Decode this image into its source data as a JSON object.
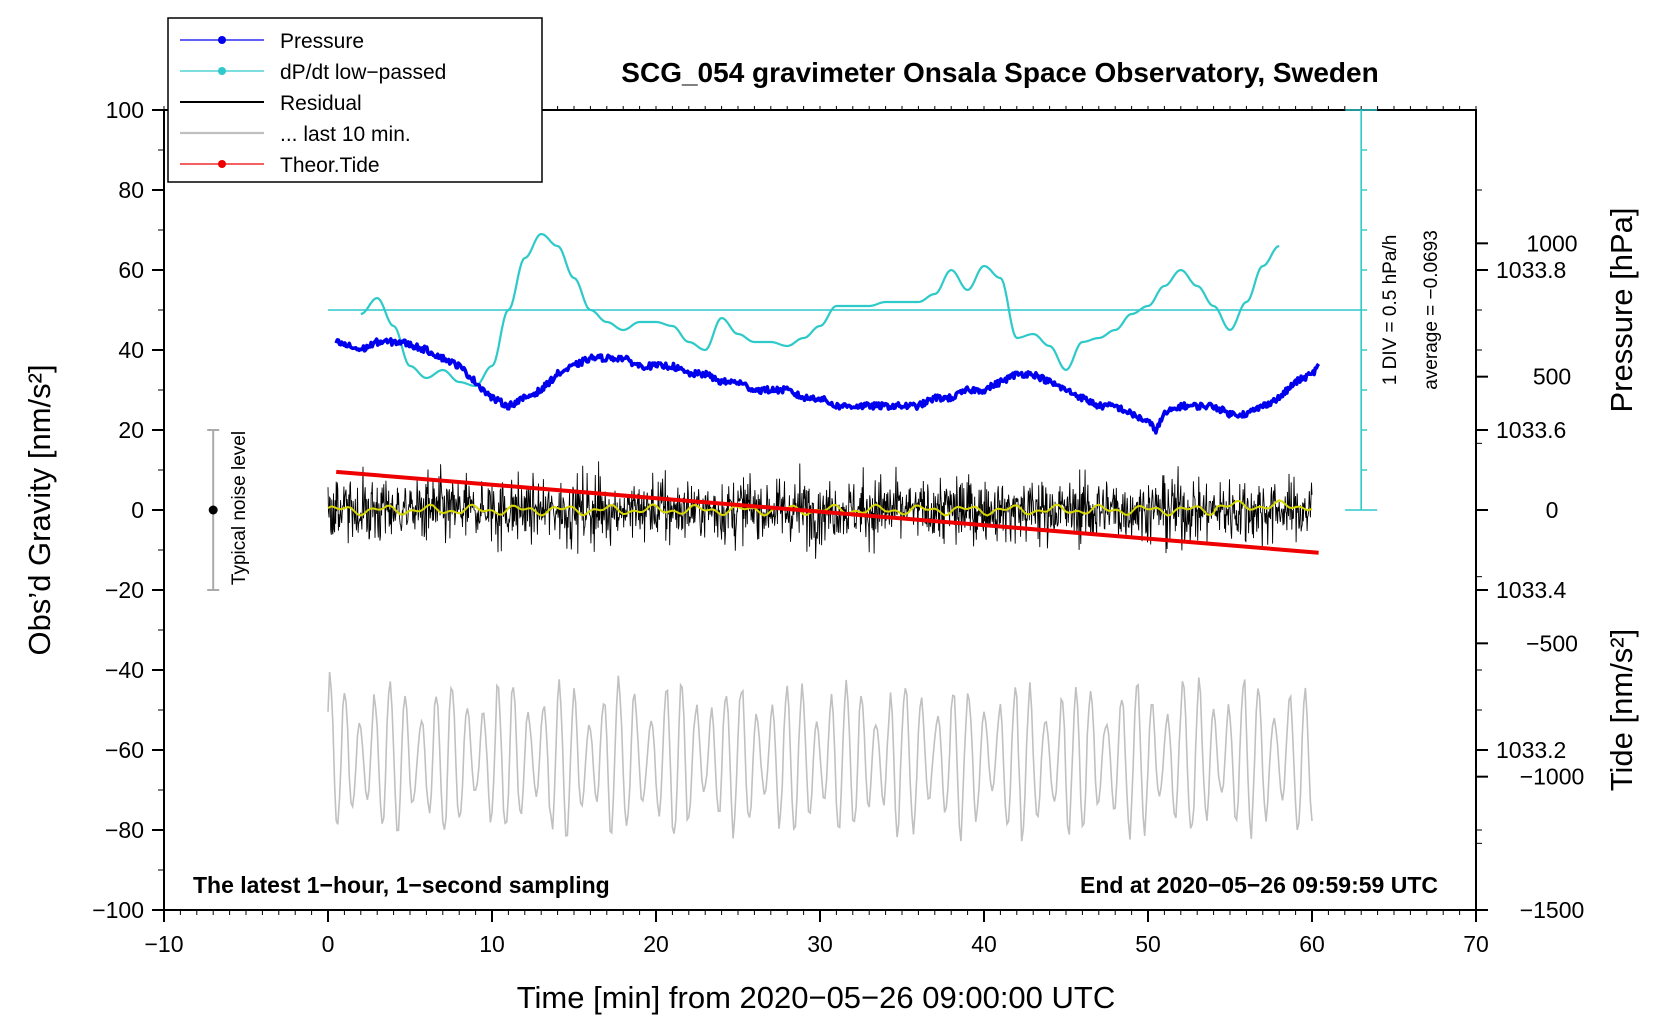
{
  "chart_data": {
    "type": "line",
    "title": "SCG_054 gravimeter Onsala Space Observatory, Sweden",
    "xlabel": "Time [min] from 2020−05−26 09:00:00 UTC",
    "ylabel_left": "Obs’d Gravity [nm/s²]",
    "ylabel_right_top": "Pressure [hPa]",
    "ylabel_right_bottom": "Tide [nm/s²]",
    "xlim": [
      -10,
      70
    ],
    "ylim": [
      -100,
      100
    ],
    "pressure_ylim": [
      1033.0,
      1034.0
    ],
    "tide_ylim": [
      -1500,
      1500
    ],
    "x_ticks": [
      {
        "value": -10,
        "label": "−10"
      },
      {
        "value": 0,
        "label": "0"
      },
      {
        "value": 10,
        "label": "10"
      },
      {
        "value": 20,
        "label": "20"
      },
      {
        "value": 30,
        "label": "30"
      },
      {
        "value": 40,
        "label": "40"
      },
      {
        "value": 50,
        "label": "50"
      },
      {
        "value": 60,
        "label": "60"
      },
      {
        "value": 70,
        "label": "70"
      }
    ],
    "y_ticks": [
      {
        "value": 100,
        "label": "100"
      },
      {
        "value": 80,
        "label": "80"
      },
      {
        "value": 60,
        "label": "60"
      },
      {
        "value": 40,
        "label": "40"
      },
      {
        "value": 20,
        "label": "20"
      },
      {
        "value": 0,
        "label": "0"
      },
      {
        "value": -20,
        "label": "−20"
      },
      {
        "value": -40,
        "label": "−40"
      },
      {
        "value": -60,
        "label": "−60"
      },
      {
        "value": -80,
        "label": "−80"
      },
      {
        "value": -100,
        "label": "−100"
      }
    ],
    "pressure_ticks": [
      {
        "value": 1033.8,
        "label": "1033.8"
      },
      {
        "value": 1033.6,
        "label": "1033.6"
      },
      {
        "value": 1033.4,
        "label": "1033.4"
      },
      {
        "value": 1033.2,
        "label": "1033.2"
      }
    ],
    "tide_ticks": [
      {
        "value": 1000,
        "label": "1000"
      },
      {
        "value": 500,
        "label": "500"
      },
      {
        "value": 0,
        "label": "0"
      },
      {
        "value": -500,
        "label": "−500"
      },
      {
        "value": -1000,
        "label": "−1000"
      },
      {
        "value": -1500,
        "label": "−1500"
      }
    ],
    "legend": [
      {
        "label": "Pressure",
        "color": "#0000ee",
        "marker": true
      },
      {
        "label": "dP/dt low−passed",
        "color": "#2ec9c9",
        "marker": true
      },
      {
        "label": "Residual",
        "color": "#000000",
        "marker": false
      },
      {
        "label": "... last 10 min.",
        "color": "#c0c0c0",
        "marker": false
      },
      {
        "label": "Theor.Tide",
        "color": "#ee0000",
        "marker": true
      }
    ],
    "series": [
      {
        "name": "Pressure",
        "color": "#0000ee",
        "axis": "pressure_hpa",
        "x": [
          0.5,
          2,
          3,
          4.5,
          6,
          7,
          8,
          9,
          10,
          11,
          12,
          13,
          14,
          15,
          16,
          17,
          18,
          19,
          20,
          21,
          22,
          23,
          24,
          25,
          26,
          27,
          28,
          29,
          30,
          31,
          32,
          33,
          34,
          35,
          36,
          37,
          38,
          39,
          40,
          41,
          42,
          43,
          44,
          45,
          46,
          47,
          48,
          49,
          50,
          50.5,
          51,
          52,
          53,
          54,
          55,
          56,
          57,
          58,
          59,
          60,
          60.4
        ],
        "y": [
          1033.71,
          1033.7,
          1033.71,
          1033.71,
          1033.7,
          1033.69,
          1033.68,
          1033.66,
          1033.64,
          1033.63,
          1033.64,
          1033.65,
          1033.67,
          1033.68,
          1033.69,
          1033.69,
          1033.69,
          1033.68,
          1033.68,
          1033.68,
          1033.67,
          1033.67,
          1033.66,
          1033.66,
          1033.65,
          1033.65,
          1033.65,
          1033.64,
          1033.64,
          1033.63,
          1033.63,
          1033.63,
          1033.63,
          1033.63,
          1033.63,
          1033.64,
          1033.64,
          1033.65,
          1033.65,
          1033.66,
          1033.67,
          1033.67,
          1033.66,
          1033.65,
          1033.64,
          1033.63,
          1033.63,
          1033.62,
          1033.61,
          1033.6,
          1033.62,
          1033.63,
          1033.63,
          1033.63,
          1033.62,
          1033.62,
          1033.63,
          1033.64,
          1033.66,
          1033.67,
          1033.68
        ]
      },
      {
        "name": "dP/dt low−passed",
        "color": "#2ec9c9",
        "axis": "gravity_nm_s2",
        "x": [
          2,
          3,
          4,
          5,
          6,
          7,
          8,
          9,
          10,
          11,
          12,
          13,
          14,
          15,
          16,
          17,
          18,
          19,
          20,
          21,
          22,
          23,
          24,
          25,
          26,
          27,
          28,
          29,
          30,
          31,
          32,
          33,
          34,
          35,
          36,
          37,
          38,
          39,
          40,
          41,
          42,
          43,
          44,
          45,
          46,
          47,
          48,
          49,
          50,
          51,
          52,
          53,
          54,
          55,
          56,
          57,
          58
        ],
        "y": [
          49,
          53,
          46,
          36,
          33,
          35,
          32,
          31,
          36,
          50,
          63,
          69,
          66,
          58,
          50,
          47,
          45,
          47,
          47,
          46,
          42,
          40,
          48,
          44,
          42,
          42,
          41,
          43,
          46,
          51,
          51,
          51,
          52,
          52,
          52,
          54,
          60,
          55,
          61,
          58,
          43,
          44,
          41,
          35,
          42,
          43,
          45,
          49,
          51,
          56,
          60,
          56,
          51,
          45,
          52,
          61,
          66
        ]
      },
      {
        "name": "Residual",
        "color": "#000000",
        "axis": "gravity_nm_s2",
        "x_range": [
          0,
          60
        ],
        "y_range": [
          -25,
          24
        ],
        "mean": 0
      },
      {
        "name": "... last 10 min.",
        "color": "#c0c0c0",
        "axis": "gravity_nm_s2",
        "x_range": [
          0,
          60
        ],
        "y_range": [
          -82,
          -38
        ]
      },
      {
        "name": "Theor.Tide",
        "color": "#ee0000",
        "axis": "tide_nm_s2",
        "x": [
          0.5,
          60.4
        ],
        "y": [
          143,
          -160
        ]
      }
    ],
    "average_line": {
      "value": 50,
      "axis": "gravity_nm_s2"
    },
    "scale_bar": {
      "label": "1 DIV = 0.5 hPa/h",
      "range": [
        0,
        100
      ],
      "x": 63
    },
    "average_label": "average = −0.0693",
    "noise_bar": {
      "label": "Typical noise level",
      "x": -7,
      "range": [
        -20,
        20
      ],
      "center": 0
    },
    "notes": {
      "left": "The latest 1−hour, 1−second sampling",
      "right": "End at 2020−05−26 09:59:59 UTC"
    }
  }
}
